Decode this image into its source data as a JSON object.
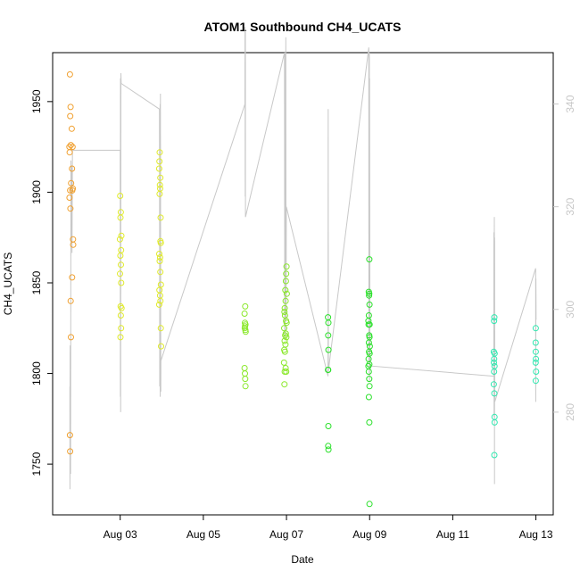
{
  "chart_data": {
    "type": "scatter",
    "title": "ATOM1 Southbound CH4_UCATS",
    "xlabel": "Date",
    "ylabel": "CH4_UCATS",
    "x_ticks": [
      "Aug 03",
      "Aug 05",
      "Aug 07",
      "Aug 09",
      "Aug 11",
      "Aug 13"
    ],
    "x_tick_dates": [
      "2016-08-03",
      "2016-08-05",
      "2016-08-07",
      "2016-08-09",
      "2016-08-11",
      "2016-08-13"
    ],
    "xlim": [
      "2016-08-01T09:00",
      "2016-08-13T10:00"
    ],
    "y_ticks": [
      1750,
      1800,
      1850,
      1900,
      1950
    ],
    "ylim": [
      1722,
      1977
    ],
    "y2_ticks": [
      280,
      300,
      320,
      340
    ],
    "y2lim": [
      260,
      350
    ],
    "grid": false,
    "legend": "none",
    "series": [
      {
        "color": "#f0a030",
        "points": [
          [
            "2016-08-01T19:00",
            1965
          ],
          [
            "2016-08-01T19:20",
            1947
          ],
          [
            "2016-08-01T19:10",
            1942
          ],
          [
            "2016-08-01T20:00",
            1935
          ],
          [
            "2016-08-01T18:40",
            1925
          ],
          [
            "2016-08-01T19:30",
            1926
          ],
          [
            "2016-08-01T20:30",
            1925
          ],
          [
            "2016-08-01T18:50",
            1922
          ],
          [
            "2016-08-01T20:10",
            1913
          ],
          [
            "2016-08-01T19:40",
            1905
          ],
          [
            "2016-08-01T20:40",
            1902
          ],
          [
            "2016-08-01T20:20",
            1901
          ],
          [
            "2016-08-01T19:05",
            1901
          ],
          [
            "2016-08-01T18:45",
            1897
          ],
          [
            "2016-08-01T19:15",
            1891
          ],
          [
            "2016-08-01T20:45",
            1874
          ],
          [
            "2016-08-01T20:50",
            1871
          ],
          [
            "2016-08-01T20:15",
            1853
          ],
          [
            "2016-08-01T19:25",
            1840
          ],
          [
            "2016-08-01T19:35",
            1820
          ],
          [
            "2016-08-01T19:00",
            1766
          ],
          [
            "2016-08-01T19:05",
            1757
          ]
        ]
      },
      {
        "color": "#e0ea2a",
        "points": [
          [
            "2016-08-03T00:00",
            1898
          ],
          [
            "2016-08-03T00:20",
            1889
          ],
          [
            "2016-08-03T00:10",
            1886
          ],
          [
            "2016-08-03T00:40",
            1876
          ],
          [
            "2016-08-02T23:50",
            1874
          ],
          [
            "2016-08-03T00:30",
            1868
          ],
          [
            "2016-08-03T00:05",
            1865
          ],
          [
            "2016-08-03T00:25",
            1860
          ],
          [
            "2016-08-02T23:55",
            1855
          ],
          [
            "2016-08-03T00:35",
            1850
          ],
          [
            "2016-08-03T00:15",
            1837
          ],
          [
            "2016-08-03T00:45",
            1836
          ],
          [
            "2016-08-03T00:20",
            1832
          ],
          [
            "2016-08-03T00:30",
            1825
          ],
          [
            "2016-08-03T00:10",
            1820
          ],
          [
            "2016-08-03T22:50",
            1922
          ],
          [
            "2016-08-03T22:40",
            1917
          ],
          [
            "2016-08-03T22:30",
            1913
          ],
          [
            "2016-08-03T23:10",
            1908
          ],
          [
            "2016-08-03T22:55",
            1904
          ],
          [
            "2016-08-03T23:05",
            1902
          ],
          [
            "2016-08-03T22:45",
            1899
          ],
          [
            "2016-08-03T23:20",
            1886
          ],
          [
            "2016-08-03T23:15",
            1873
          ],
          [
            "2016-08-03T23:25",
            1872
          ],
          [
            "2016-08-03T22:35",
            1866
          ],
          [
            "2016-08-03T23:00",
            1864
          ],
          [
            "2016-08-03T22:50",
            1862
          ],
          [
            "2016-08-03T23:10",
            1856
          ],
          [
            "2016-08-03T23:30",
            1849
          ],
          [
            "2016-08-03T22:40",
            1846
          ],
          [
            "2016-08-03T23:00",
            1843
          ],
          [
            "2016-08-03T23:15",
            1840
          ],
          [
            "2016-08-03T22:30",
            1838
          ],
          [
            "2016-08-03T23:25",
            1825
          ],
          [
            "2016-08-03T23:35",
            1815
          ]
        ]
      },
      {
        "color": "#8ae82a",
        "points": [
          [
            "2016-08-06T00:10",
            1837
          ],
          [
            "2016-08-05T23:50",
            1833
          ],
          [
            "2016-08-06T00:00",
            1828
          ],
          [
            "2016-08-06T00:20",
            1827
          ],
          [
            "2016-08-06T00:05",
            1826
          ],
          [
            "2016-08-05T23:55",
            1825
          ],
          [
            "2016-08-06T00:15",
            1824
          ],
          [
            "2016-08-06T00:25",
            1823
          ],
          [
            "2016-08-05T23:50",
            1803
          ],
          [
            "2016-08-06T00:00",
            1800
          ],
          [
            "2016-08-06T00:10",
            1797
          ],
          [
            "2016-08-06T00:20",
            1793
          ],
          [
            "2016-08-07T00:00",
            1859
          ],
          [
            "2016-08-06T23:50",
            1855
          ],
          [
            "2016-08-06T23:40",
            1851
          ],
          [
            "2016-08-06T23:20",
            1846
          ],
          [
            "2016-08-07T00:10",
            1844
          ],
          [
            "2016-08-06T23:30",
            1840
          ],
          [
            "2016-08-06T23:00",
            1836
          ],
          [
            "2016-08-06T22:50",
            1834
          ],
          [
            "2016-08-06T23:10",
            1832
          ],
          [
            "2016-08-06T23:45",
            1829
          ],
          [
            "2016-08-07T00:05",
            1828
          ],
          [
            "2016-08-06T22:40",
            1825
          ],
          [
            "2016-08-06T23:35",
            1822
          ],
          [
            "2016-08-06T23:15",
            1821
          ],
          [
            "2016-08-06T23:55",
            1820
          ],
          [
            "2016-08-06T22:55",
            1818
          ],
          [
            "2016-08-06T23:25",
            1816
          ],
          [
            "2016-08-06T22:45",
            1813
          ],
          [
            "2016-08-06T23:05",
            1812
          ],
          [
            "2016-08-06T22:35",
            1806
          ],
          [
            "2016-08-06T23:30",
            1803
          ],
          [
            "2016-08-06T23:00",
            1801
          ],
          [
            "2016-08-06T23:50",
            1801
          ],
          [
            "2016-08-06T22:50",
            1794
          ]
        ]
      },
      {
        "color": "#2ae02a",
        "points": [
          [
            "2016-08-08T00:00",
            1831
          ],
          [
            "2016-08-08T00:10",
            1828
          ],
          [
            "2016-08-08T00:05",
            1821
          ],
          [
            "2016-08-08T00:15",
            1813
          ],
          [
            "2016-08-08T00:00",
            1802
          ],
          [
            "2016-08-08T00:05",
            1802
          ],
          [
            "2016-08-08T00:10",
            1771
          ],
          [
            "2016-08-08T00:05",
            1760
          ],
          [
            "2016-08-08T00:15",
            1758
          ],
          [
            "2016-08-08T23:50",
            1863
          ],
          [
            "2016-08-08T23:30",
            1845
          ],
          [
            "2016-08-08T23:45",
            1844
          ],
          [
            "2016-08-08T23:40",
            1843
          ],
          [
            "2016-08-08T23:55",
            1838
          ],
          [
            "2016-08-08T23:35",
            1832
          ],
          [
            "2016-08-08T23:20",
            1829
          ],
          [
            "2016-08-08T23:25",
            1827
          ],
          [
            "2016-08-09T00:00",
            1827
          ],
          [
            "2016-08-08T23:45",
            1821
          ],
          [
            "2016-08-08T23:55",
            1820
          ],
          [
            "2016-08-08T23:35",
            1817
          ],
          [
            "2016-08-09T00:05",
            1815
          ],
          [
            "2016-08-08T23:40",
            1812
          ],
          [
            "2016-08-09T00:00",
            1811
          ],
          [
            "2016-08-08T23:25",
            1808
          ],
          [
            "2016-08-08T23:50",
            1805
          ],
          [
            "2016-08-08T23:20",
            1804
          ],
          [
            "2016-08-08T23:30",
            1801
          ],
          [
            "2016-08-08T23:45",
            1797
          ],
          [
            "2016-08-08T23:55",
            1793
          ],
          [
            "2016-08-08T23:35",
            1787
          ],
          [
            "2016-08-08T23:50",
            1773
          ],
          [
            "2016-08-08T23:55",
            1728
          ]
        ]
      },
      {
        "color": "#30e8b0",
        "points": [
          [
            "2016-08-12T00:00",
            1831
          ],
          [
            "2016-08-11T23:50",
            1829
          ],
          [
            "2016-08-11T23:40",
            1812
          ],
          [
            "2016-08-12T00:10",
            1811
          ],
          [
            "2016-08-11T23:55",
            1808
          ],
          [
            "2016-08-11T23:45",
            1806
          ],
          [
            "2016-08-12T00:05",
            1804
          ],
          [
            "2016-08-11T23:50",
            1801
          ],
          [
            "2016-08-11T23:40",
            1794
          ],
          [
            "2016-08-12T00:00",
            1789
          ],
          [
            "2016-08-12T00:05",
            1776
          ],
          [
            "2016-08-12T00:10",
            1773
          ],
          [
            "2016-08-12T00:00",
            1755
          ],
          [
            "2016-08-12T23:55",
            1825
          ],
          [
            "2016-08-12T23:50",
            1817
          ],
          [
            "2016-08-12T23:55",
            1812
          ],
          [
            "2016-08-13T00:00",
            1808
          ],
          [
            "2016-08-12T23:50",
            1806
          ],
          [
            "2016-08-13T00:05",
            1801
          ],
          [
            "2016-08-12T23:55",
            1796
          ]
        ]
      }
    ],
    "overlay_series": {
      "axis": "right",
      "color": "#c8c8c8",
      "type": "line",
      "points": [
        [
          "2016-08-01T18:55",
          285
        ],
        [
          "2016-08-01T19:00",
          265
        ],
        [
          "2016-08-01T19:05",
          293
        ],
        [
          "2016-08-01T19:10",
          277
        ],
        [
          "2016-08-01T19:20",
          268
        ],
        [
          "2016-08-01T19:35",
          329
        ],
        [
          "2016-08-01T19:45",
          313
        ],
        [
          "2016-08-01T20:00",
          328
        ],
        [
          "2016-08-01T20:10",
          311
        ],
        [
          "2016-08-01T20:25",
          331
        ],
        [
          "2016-08-03T00:00",
          331
        ],
        [
          "2016-08-03T00:05",
          283
        ],
        [
          "2016-08-03T00:10",
          345
        ],
        [
          "2016-08-03T00:15",
          280
        ],
        [
          "2016-08-03T00:25",
          346
        ],
        [
          "2016-08-03T00:35",
          344
        ],
        [
          "2016-08-03T22:40",
          339
        ],
        [
          "2016-08-03T22:45",
          310
        ],
        [
          "2016-08-03T22:50",
          285
        ],
        [
          "2016-08-03T23:00",
          340
        ],
        [
          "2016-08-03T23:05",
          283
        ],
        [
          "2016-08-03T23:15",
          342
        ],
        [
          "2016-08-03T23:25",
          284
        ],
        [
          "2016-08-03T23:30",
          290
        ],
        [
          "2016-08-06T00:00",
          340
        ],
        [
          "2016-08-06T00:05",
          355
        ],
        [
          "2016-08-06T00:10",
          322
        ],
        [
          "2016-08-06T00:15",
          354
        ],
        [
          "2016-08-06T00:20",
          318
        ],
        [
          "2016-08-06T22:50",
          350
        ],
        [
          "2016-08-06T23:00",
          295
        ],
        [
          "2016-08-06T23:05",
          348
        ],
        [
          "2016-08-06T23:15",
          294
        ],
        [
          "2016-08-06T23:20",
          350
        ],
        [
          "2016-08-06T23:25",
          296
        ],
        [
          "2016-08-06T23:35",
          353
        ],
        [
          "2016-08-06T23:45",
          298
        ],
        [
          "2016-08-06T23:55",
          320
        ],
        [
          "2016-08-08T00:00",
          287
        ],
        [
          "2016-08-08T00:05",
          339
        ],
        [
          "2016-08-08T00:10",
          288
        ],
        [
          "2016-08-08T23:30",
          351
        ],
        [
          "2016-08-08T23:35",
          290
        ],
        [
          "2016-08-08T23:40",
          348
        ],
        [
          "2016-08-08T23:45",
          287
        ],
        [
          "2016-08-08T23:50",
          350
        ],
        [
          "2016-08-08T23:55",
          286
        ],
        [
          "2016-08-09T00:00",
          345
        ],
        [
          "2016-08-09T00:10",
          289
        ],
        [
          "2016-08-11T23:40",
          287
        ],
        [
          "2016-08-11T23:45",
          315
        ],
        [
          "2016-08-11T23:50",
          279
        ],
        [
          "2016-08-12T00:00",
          318
        ],
        [
          "2016-08-12T00:05",
          266
        ],
        [
          "2016-08-12T00:10",
          314
        ],
        [
          "2016-08-12T00:15",
          282
        ],
        [
          "2016-08-12T23:50",
          308
        ],
        [
          "2016-08-12T23:55",
          282
        ],
        [
          "2016-08-13T00:00",
          306
        ],
        [
          "2016-08-13T00:05",
          298
        ]
      ]
    }
  }
}
